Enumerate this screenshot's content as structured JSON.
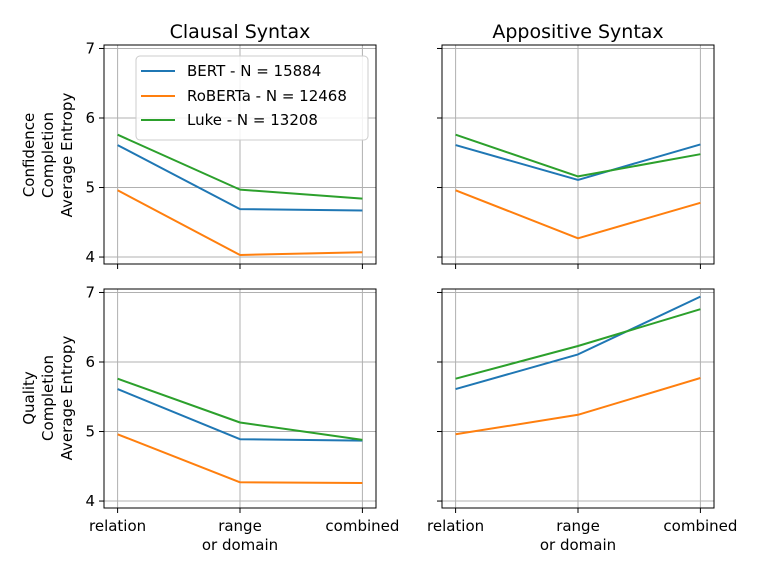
{
  "chart_data": {
    "type": "line",
    "categories": [
      "relation",
      "range\nor domain",
      "combined"
    ],
    "yticks": [
      4,
      5,
      6,
      7
    ],
    "series_names": [
      "BERT - N = 15884",
      "RoBERTa - N = 12468",
      "Luke - N = 13208"
    ],
    "colors": {
      "BERT": "#1f77b4",
      "RoBERTa": "#ff7f0e",
      "Luke": "#2ca02c"
    },
    "column_titles": [
      "Clausal Syntax",
      "Appositive Syntax"
    ],
    "row_labels": [
      [
        "Confidence",
        "Completion",
        "Average Entropy"
      ],
      [
        "Quality",
        "Completion",
        "Average Entropy"
      ]
    ],
    "legend_position": "upper-left of top-left panel",
    "panels": [
      {
        "title": "Clausal Syntax",
        "ylim": [
          3.9,
          7.05
        ],
        "series": [
          {
            "name": "BERT - N = 15884",
            "values": [
              5.61,
              4.69,
              4.67
            ]
          },
          {
            "name": "RoBERTa - N = 12468",
            "values": [
              4.96,
              4.03,
              4.07
            ]
          },
          {
            "name": "Luke - N = 13208",
            "values": [
              5.76,
              4.97,
              4.84
            ]
          }
        ]
      },
      {
        "title": "Appositive Syntax",
        "ylim": [
          3.9,
          7.05
        ],
        "series": [
          {
            "name": "BERT - N = 15884",
            "values": [
              5.61,
              5.11,
              5.62
            ]
          },
          {
            "name": "RoBERTa - N = 12468",
            "values": [
              4.96,
              4.27,
              4.78
            ]
          },
          {
            "name": "Luke - N = 13208",
            "values": [
              5.76,
              5.16,
              5.48
            ]
          }
        ]
      },
      {
        "title": "",
        "ylim": [
          3.9,
          7.05
        ],
        "series": [
          {
            "name": "BERT - N = 15884",
            "values": [
              5.61,
              4.89,
              4.87
            ]
          },
          {
            "name": "RoBERTa - N = 12468",
            "values": [
              4.96,
              4.27,
              4.26
            ]
          },
          {
            "name": "Luke - N = 13208",
            "values": [
              5.76,
              5.13,
              4.88
            ]
          }
        ]
      },
      {
        "title": "",
        "ylim": [
          3.9,
          7.05
        ],
        "series": [
          {
            "name": "BERT - N = 15884",
            "values": [
              5.61,
              6.11,
              6.94
            ]
          },
          {
            "name": "RoBERTa - N = 12468",
            "values": [
              4.96,
              5.24,
              5.77
            ]
          },
          {
            "name": "Luke - N = 13208",
            "values": [
              5.76,
              6.23,
              6.76
            ]
          }
        ]
      }
    ]
  }
}
